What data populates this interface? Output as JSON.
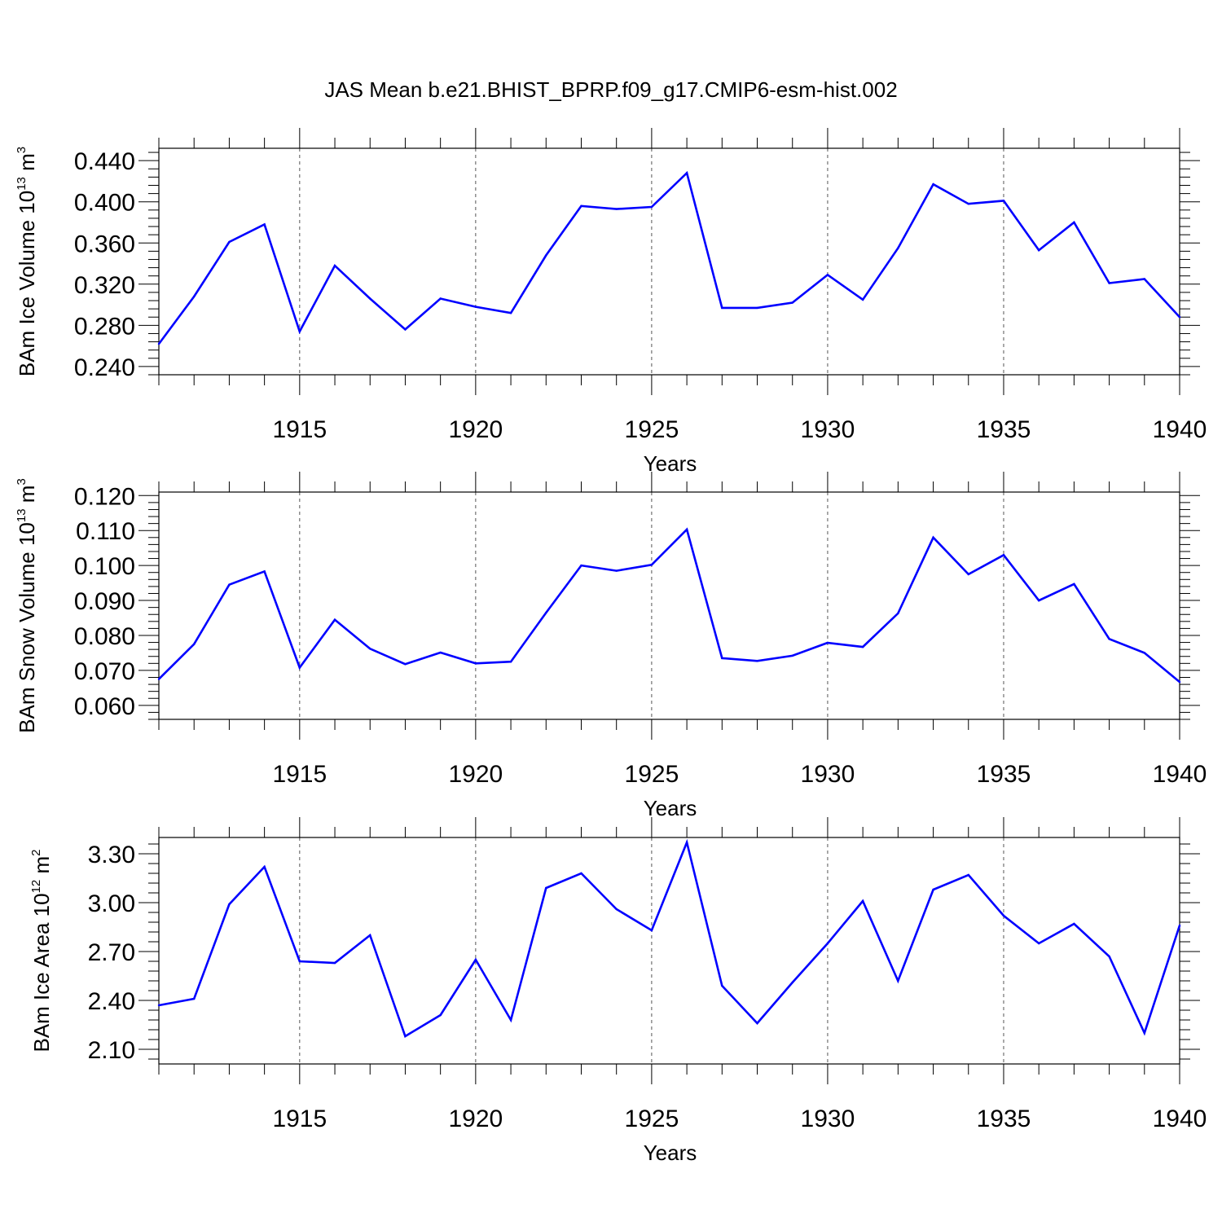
{
  "title": "JAS Mean b.e21.BHIST_BPRP.f09_g17.CMIP6-esm-hist.002",
  "colors": {
    "line": "#0000ff",
    "axis": "#000000",
    "grid": "#555555"
  },
  "chart_data": [
    {
      "type": "line",
      "xlabel": "Years",
      "ylabel_prefix": "BAm Ice Volume 10",
      "ylabel_exp": "13",
      "ylabel_suffix": " m",
      "ylabel_unit_exp": "3",
      "xlim": [
        1911,
        1940
      ],
      "ylim": [
        0.232,
        0.452
      ],
      "yticks": [
        0.24,
        0.28,
        0.32,
        0.36,
        0.4,
        0.44
      ],
      "ytick_labels": [
        "0.240",
        "0.280",
        "0.320",
        "0.360",
        "0.400",
        "0.440"
      ],
      "xticks": [
        1915,
        1920,
        1925,
        1930,
        1935,
        1940
      ],
      "xtick_labels": [
        "1915",
        "1920",
        "1925",
        "1930",
        "1935",
        "1940"
      ],
      "grid": "vertical dashed at major x ticks",
      "x": [
        1911,
        1912,
        1913,
        1914,
        1915,
        1916,
        1917,
        1918,
        1919,
        1920,
        1921,
        1922,
        1923,
        1924,
        1925,
        1926,
        1927,
        1928,
        1929,
        1930,
        1931,
        1932,
        1933,
        1934,
        1935,
        1936,
        1937,
        1938,
        1939,
        1940
      ],
      "values": [
        0.262,
        0.308,
        0.361,
        0.378,
        0.274,
        0.338,
        0.306,
        0.276,
        0.306,
        0.298,
        0.292,
        0.348,
        0.396,
        0.393,
        0.395,
        0.428,
        0.297,
        0.297,
        0.302,
        0.329,
        0.305,
        0.355,
        0.417,
        0.398,
        0.401,
        0.353,
        0.38,
        0.321,
        0.325,
        0.288
      ]
    },
    {
      "type": "line",
      "xlabel": "Years",
      "ylabel_prefix": "BAm Snow Volume 10",
      "ylabel_exp": "13",
      "ylabel_suffix": " m",
      "ylabel_unit_exp": "3",
      "xlim": [
        1911,
        1940
      ],
      "ylim": [
        0.056,
        0.121
      ],
      "yticks": [
        0.06,
        0.07,
        0.08,
        0.09,
        0.1,
        0.11,
        0.12
      ],
      "ytick_labels": [
        "0.060",
        "0.070",
        "0.080",
        "0.090",
        "0.100",
        "0.110",
        "0.120"
      ],
      "xticks": [
        1915,
        1920,
        1925,
        1930,
        1935,
        1940
      ],
      "xtick_labels": [
        "1915",
        "1920",
        "1925",
        "1930",
        "1935",
        "1940"
      ],
      "grid": "vertical dashed at major x ticks",
      "x": [
        1911,
        1912,
        1913,
        1914,
        1915,
        1916,
        1917,
        1918,
        1919,
        1920,
        1921,
        1922,
        1923,
        1924,
        1925,
        1926,
        1927,
        1928,
        1929,
        1930,
        1931,
        1932,
        1933,
        1934,
        1935,
        1936,
        1937,
        1938,
        1939,
        1940
      ],
      "values": [
        0.0675,
        0.0775,
        0.0945,
        0.0983,
        0.0708,
        0.0845,
        0.0762,
        0.0718,
        0.0751,
        0.072,
        0.0725,
        0.0865,
        0.1,
        0.0985,
        0.1002,
        0.1103,
        0.0735,
        0.0727,
        0.0742,
        0.0779,
        0.0767,
        0.0863,
        0.108,
        0.0975,
        0.103,
        0.09,
        0.0947,
        0.079,
        0.075,
        0.0667
      ]
    },
    {
      "type": "line",
      "xlabel": "Years",
      "ylabel_prefix": "BAm Ice Area 10",
      "ylabel_exp": "12",
      "ylabel_suffix": " m",
      "ylabel_unit_exp": "2",
      "xlim": [
        1911,
        1940
      ],
      "ylim": [
        2.01,
        3.4
      ],
      "yticks": [
        2.1,
        2.4,
        2.7,
        3.0,
        3.3
      ],
      "ytick_labels": [
        "2.10",
        "2.40",
        "2.70",
        "3.00",
        "3.30"
      ],
      "xticks": [
        1915,
        1920,
        1925,
        1930,
        1935,
        1940
      ],
      "xtick_labels": [
        "1915",
        "1920",
        "1925",
        "1930",
        "1935",
        "1940"
      ],
      "grid": "vertical dashed at major x ticks",
      "x": [
        1911,
        1912,
        1913,
        1914,
        1915,
        1916,
        1917,
        1918,
        1919,
        1920,
        1921,
        1922,
        1923,
        1924,
        1925,
        1926,
        1927,
        1928,
        1929,
        1930,
        1931,
        1932,
        1933,
        1934,
        1935,
        1936,
        1937,
        1938,
        1939,
        1940
      ],
      "values": [
        2.37,
        2.41,
        2.99,
        3.22,
        2.64,
        2.63,
        2.8,
        2.18,
        2.31,
        2.65,
        2.28,
        3.09,
        3.18,
        2.96,
        2.83,
        3.37,
        2.49,
        2.26,
        2.51,
        2.75,
        3.01,
        2.52,
        3.08,
        3.17,
        2.92,
        2.75,
        2.87,
        2.67,
        2.2,
        2.86
      ]
    }
  ]
}
